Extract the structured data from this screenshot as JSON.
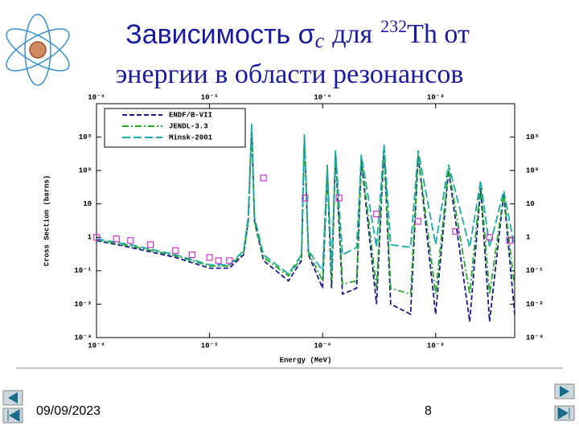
{
  "slide": {
    "title_1": "Зависимость σ",
    "title_sub": "c",
    "title_2": "для",
    "title_sup": "232",
    "title_3": "Th от",
    "title_line2": "энергии в области резонансов",
    "date": "09/09/2023",
    "page": "8"
  },
  "chart_data": {
    "type": "line",
    "xlabel": "Energy (MeV)",
    "ylabel": "Cross Section (barns)",
    "xscale": "log",
    "yscale": "log",
    "xlim": [
      1e-06,
      0.005
    ],
    "ylim": [
      0.001,
      10000
    ],
    "xticks": [
      {
        "value": 1e-06,
        "label": "10⁻⁶"
      },
      {
        "value": 1e-05,
        "label": "10⁻⁵"
      },
      {
        "value": 0.0001,
        "label": "10⁻⁴"
      },
      {
        "value": 0.001,
        "label": "10⁻³"
      }
    ],
    "yticks": [
      {
        "value": 0.001,
        "label": "10⁻³"
      },
      {
        "value": 0.01,
        "label": "10⁻²"
      },
      {
        "value": 0.1,
        "label": "10⁻¹"
      },
      1,
      10,
      {
        "value": 100,
        "label": "10²"
      },
      {
        "value": 1000,
        "label": "10³"
      }
    ],
    "legend": "top-left",
    "series": [
      {
        "name": "ENDF/B-VII",
        "color": "#1a1a8c",
        "dash": "6 3",
        "x": [
          1e-06,
          2e-06,
          5e-06,
          1e-05,
          1.5e-05,
          2e-05,
          2.2e-05,
          2.36e-05,
          2.5e-05,
          3e-05,
          5e-05,
          6.5e-05,
          6.9e-05,
          7.5e-05,
          0.0001,
          0.00011,
          0.00012,
          0.00013,
          0.00015,
          0.0002,
          0.00022,
          0.0003,
          0.00035,
          0.0004,
          0.0006,
          0.0007,
          0.001,
          0.0013,
          0.002,
          0.0025,
          0.003,
          0.004,
          0.005
        ],
        "values": [
          0.8,
          0.5,
          0.25,
          0.12,
          0.12,
          0.3,
          3,
          2000,
          3,
          0.2,
          0.05,
          0.2,
          1000,
          0.3,
          0.03,
          100,
          0.03,
          300,
          0.02,
          0.03,
          200,
          0.01,
          500,
          0.01,
          0.005,
          300,
          0.005,
          100,
          0.003,
          30,
          0.003,
          20,
          0.005
        ]
      },
      {
        "name": "JENDL-3.3",
        "color": "#22aa22",
        "dash": "8 3 2 3",
        "x": [
          1e-06,
          2e-06,
          5e-06,
          1e-05,
          1.5e-05,
          2e-05,
          2.2e-05,
          2.36e-05,
          2.5e-05,
          3e-05,
          5e-05,
          6.5e-05,
          6.9e-05,
          7.5e-05,
          0.0001,
          0.00011,
          0.00012,
          0.00013,
          0.00015,
          0.0002,
          0.00022,
          0.0003,
          0.00035,
          0.0004,
          0.0006,
          0.0007,
          0.001,
          0.0013,
          0.002,
          0.0025,
          0.003,
          0.004,
          0.005
        ],
        "values": [
          0.85,
          0.55,
          0.28,
          0.14,
          0.14,
          0.35,
          3,
          1800,
          3,
          0.25,
          0.07,
          0.25,
          900,
          0.35,
          0.05,
          120,
          0.05,
          350,
          0.04,
          0.05,
          250,
          0.03,
          500,
          0.03,
          0.02,
          300,
          0.02,
          120,
          0.02,
          40,
          0.02,
          20,
          0.03
        ]
      },
      {
        "name": "Minsk-2001",
        "color": "#1aaaaa",
        "dash": "10 4",
        "x": [
          1e-06,
          2e-06,
          5e-06,
          1e-05,
          1.5e-05,
          2e-05,
          2.2e-05,
          2.36e-05,
          2.5e-05,
          3e-05,
          5e-05,
          6.5e-05,
          6.9e-05,
          7.5e-05,
          0.0001,
          0.00011,
          0.00012,
          0.00013,
          0.00015,
          0.0002,
          0.00022,
          0.0003,
          0.00035,
          0.0004,
          0.0006,
          0.0007,
          0.001,
          0.0013,
          0.002,
          0.0025,
          0.003,
          0.004,
          0.005
        ],
        "values": [
          0.9,
          0.6,
          0.3,
          0.15,
          0.15,
          0.4,
          4,
          2500,
          4,
          0.3,
          0.08,
          0.3,
          1200,
          0.4,
          0.1,
          150,
          0.1,
          400,
          0.3,
          0.5,
          300,
          0.5,
          600,
          0.6,
          0.5,
          400,
          0.6,
          150,
          0.5,
          50,
          0.5,
          25,
          0.5
        ]
      },
      {
        "color": "#cc33cc",
        "marker": "square",
        "x": [
          1e-06,
          1.5e-06,
          2e-06,
          3e-06,
          5e-06,
          7e-06,
          1e-05,
          1.2e-05,
          1.5e-05,
          3e-05,
          7e-05,
          0.00014,
          0.0003,
          0.0007,
          0.0015,
          0.003,
          0.0045
        ],
        "values": [
          1,
          0.9,
          0.8,
          0.6,
          0.4,
          0.3,
          0.25,
          0.2,
          0.2,
          60,
          15,
          15,
          5,
          3,
          1.5,
          1,
          0.8
        ]
      }
    ]
  }
}
